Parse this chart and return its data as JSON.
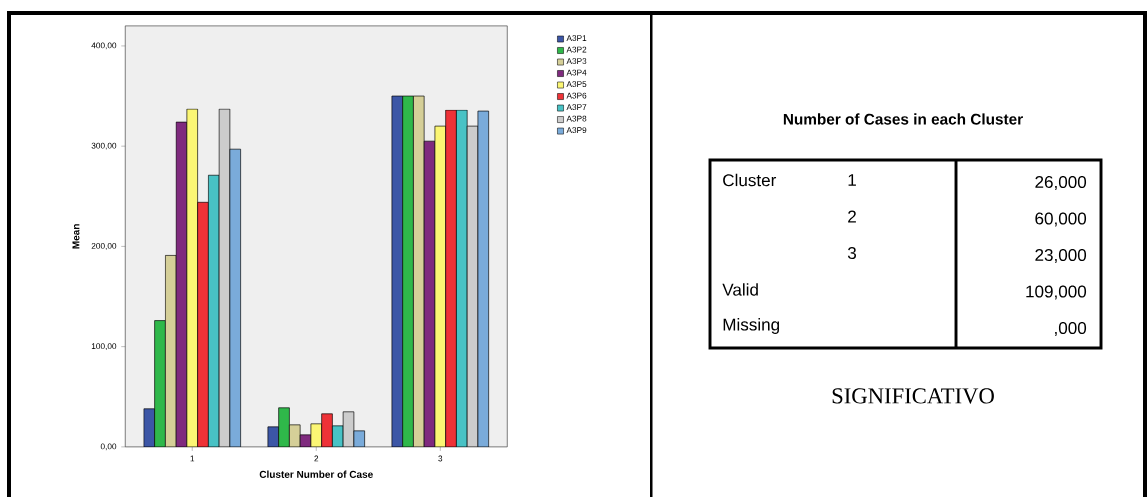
{
  "chart_data": [
    {
      "type": "bar",
      "xlabel": "Cluster Number of Case",
      "ylabel": "Mean",
      "categories": [
        "1",
        "2",
        "3"
      ],
      "series": [
        {
          "name": "A3P1",
          "color": "#3c56a6",
          "values": [
            38,
            20,
            350
          ]
        },
        {
          "name": "A3P2",
          "color": "#2fb84a",
          "values": [
            126,
            39,
            350
          ]
        },
        {
          "name": "A3P3",
          "color": "#d5cf98",
          "values": [
            191,
            22,
            350
          ]
        },
        {
          "name": "A3P4",
          "color": "#7f2a7e",
          "values": [
            324,
            12,
            305
          ]
        },
        {
          "name": "A3P5",
          "color": "#fbf674",
          "values": [
            337,
            23,
            320
          ]
        },
        {
          "name": "A3P6",
          "color": "#ee3237",
          "values": [
            244,
            33,
            336
          ]
        },
        {
          "name": "A3P7",
          "color": "#48c2c5",
          "values": [
            271,
            21,
            336
          ]
        },
        {
          "name": "A3P8",
          "color": "#cccccc",
          "values": [
            337,
            35,
            320
          ]
        },
        {
          "name": "A3P9",
          "color": "#7aabda",
          "values": [
            297,
            16,
            335
          ]
        }
      ],
      "ylim": [
        0,
        420
      ],
      "yticks": [
        {
          "value": 0,
          "label": "0,00"
        },
        {
          "value": 100,
          "label": "100,00"
        },
        {
          "value": 200,
          "label": "200,00"
        },
        {
          "value": 300,
          "label": "300,00"
        },
        {
          "value": 400,
          "label": "400,00"
        }
      ],
      "legend": "right"
    },
    {
      "type": "other",
      "title": "Number of Cases in each Cluster",
      "annotations": [
        "Cluster",
        "1",
        "26,000",
        "2",
        "60,000",
        "3",
        "23,000",
        "Valid",
        "109,000",
        "Missing",
        ",000",
        "SIGNIFICATIVO"
      ]
    }
  ]
}
